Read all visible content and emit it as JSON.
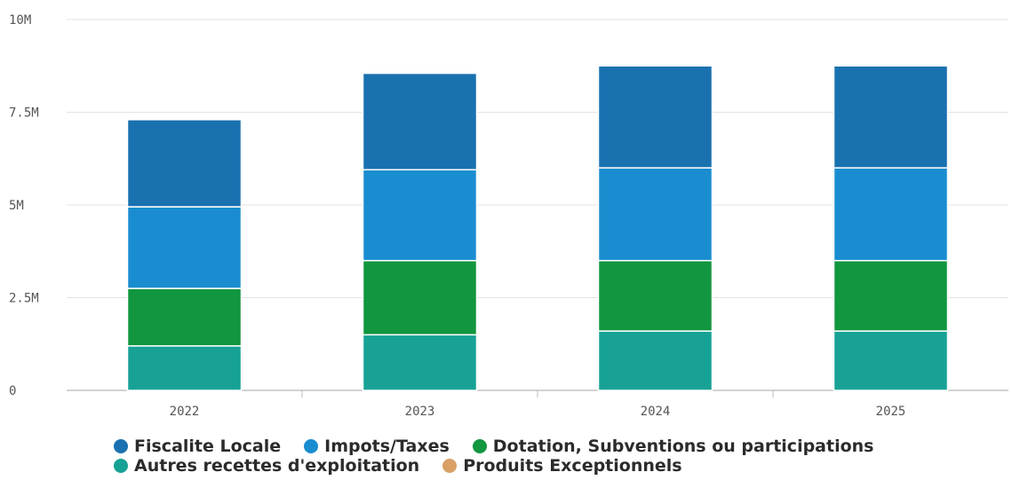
{
  "chart_data": {
    "type": "bar",
    "stacked": true,
    "categories": [
      "2022",
      "2023",
      "2024",
      "2025"
    ],
    "series": [
      {
        "name": "Autres recettes d'exploitation",
        "color": "#17a295",
        "values": [
          1.2,
          1.5,
          1.6,
          1.6
        ]
      },
      {
        "name": "Dotation, Subventions ou participations",
        "color": "#12963f",
        "values": [
          1.55,
          2.0,
          1.9,
          1.9
        ]
      },
      {
        "name": "Impots/Taxes",
        "color": "#1a8dd0",
        "values": [
          2.2,
          2.45,
          2.5,
          2.5
        ]
      },
      {
        "name": "Fiscalite Locale",
        "color": "#1a71b0",
        "values": [
          2.35,
          2.6,
          2.75,
          2.75
        ]
      },
      {
        "name": "Produits Exceptionnels",
        "color": "#d9a066",
        "values": [
          0,
          0,
          0,
          0
        ]
      }
    ],
    "legend_order": [
      "Fiscalite Locale",
      "Impots/Taxes",
      "Dotation, Subventions ou participations",
      "Autres recettes d'exploitation",
      "Produits Exceptionnels"
    ],
    "y_ticks": [
      {
        "value": 0,
        "label": "0"
      },
      {
        "value": 2.5,
        "label": "2.5M"
      },
      {
        "value": 5,
        "label": "5M"
      },
      {
        "value": 7.5,
        "label": "7.5M"
      },
      {
        "value": 10,
        "label": "10M"
      }
    ],
    "ylim": [
      0,
      10
    ],
    "y_unit": "millions",
    "grid": true,
    "legend_position": "bottom",
    "title": "",
    "xlabel": "",
    "ylabel": ""
  }
}
